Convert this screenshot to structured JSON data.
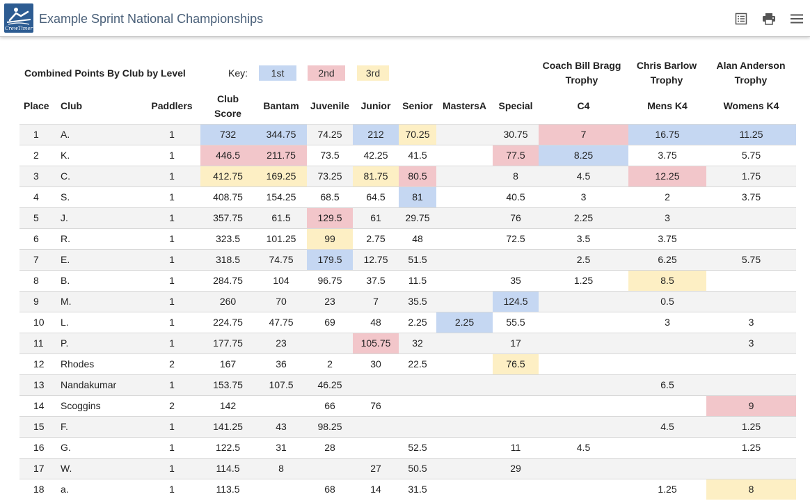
{
  "app": {
    "title": "Example Sprint National Championships",
    "logo_text": "CrewTimer"
  },
  "toolbar": {
    "icons": [
      "list-view-icon",
      "print-icon",
      "menu-icon"
    ]
  },
  "colors": {
    "first": "#c5d7f2",
    "second": "#f2c6ca",
    "third": "#fdefc4"
  },
  "report": {
    "title": "Combined Points By Club by Level",
    "key_label": "Key:",
    "key": {
      "first": "1st",
      "second": "2nd",
      "third": "3rd"
    },
    "trophies": {
      "c4": "Coach Bill Bragg Trophy",
      "mens_k4": "Chris Barlow Trophy",
      "womens_k4": "Alan Anderson Trophy"
    },
    "columns": {
      "place": "Place",
      "club": "Club",
      "paddlers": "Paddlers",
      "club_score": "Club Score",
      "bantam": "Bantam",
      "juvenile": "Juvenile",
      "junior": "Junior",
      "senior": "Senior",
      "masters_a": "MastersA",
      "special": "Special",
      "c4": "C4",
      "mens_k4": "Mens K4",
      "womens_k4": "Womens K4"
    },
    "rows": [
      {
        "place": "1",
        "club": "A.",
        "paddlers": "1",
        "club_score": "732",
        "bantam": "344.75",
        "juvenile": "74.25",
        "junior": "212",
        "senior": "70.25",
        "masters_a": "",
        "special": "30.75",
        "c4": "7",
        "mens_k4": "16.75",
        "womens_k4": "11.25",
        "highlight": {
          "club_score": "1",
          "bantam": "1",
          "junior": "1",
          "senior": "3",
          "c4": "2",
          "mens_k4": "1",
          "womens_k4": "1"
        }
      },
      {
        "place": "2",
        "club": "K.",
        "paddlers": "1",
        "club_score": "446.5",
        "bantam": "211.75",
        "juvenile": "73.5",
        "junior": "42.25",
        "senior": "41.5",
        "masters_a": "",
        "special": "77.5",
        "c4": "8.25",
        "mens_k4": "3.75",
        "womens_k4": "5.75",
        "highlight": {
          "club_score": "2",
          "bantam": "2",
          "special": "2",
          "c4": "1"
        }
      },
      {
        "place": "3",
        "club": "C.",
        "paddlers": "1",
        "club_score": "412.75",
        "bantam": "169.25",
        "juvenile": "73.25",
        "junior": "81.75",
        "senior": "80.5",
        "masters_a": "",
        "special": "8",
        "c4": "4.5",
        "mens_k4": "12.25",
        "womens_k4": "1.75",
        "highlight": {
          "club_score": "3",
          "bantam": "3",
          "junior": "3",
          "senior": "2",
          "mens_k4": "2"
        }
      },
      {
        "place": "4",
        "club": "S.",
        "paddlers": "1",
        "club_score": "408.75",
        "bantam": "154.25",
        "juvenile": "68.5",
        "junior": "64.5",
        "senior": "81",
        "masters_a": "",
        "special": "40.5",
        "c4": "3",
        "mens_k4": "2",
        "womens_k4": "3.75",
        "highlight": {
          "senior": "1"
        }
      },
      {
        "place": "5",
        "club": "J.",
        "paddlers": "1",
        "club_score": "357.75",
        "bantam": "61.5",
        "juvenile": "129.5",
        "junior": "61",
        "senior": "29.75",
        "masters_a": "",
        "special": "76",
        "c4": "2.25",
        "mens_k4": "3",
        "womens_k4": "",
        "highlight": {
          "juvenile": "2"
        }
      },
      {
        "place": "6",
        "club": "R.",
        "paddlers": "1",
        "club_score": "323.5",
        "bantam": "101.25",
        "juvenile": "99",
        "junior": "2.75",
        "senior": "48",
        "masters_a": "",
        "special": "72.5",
        "c4": "3.5",
        "mens_k4": "3.75",
        "womens_k4": "",
        "highlight": {
          "juvenile": "3"
        }
      },
      {
        "place": "7",
        "club": "E.",
        "paddlers": "1",
        "club_score": "318.5",
        "bantam": "74.75",
        "juvenile": "179.5",
        "junior": "12.75",
        "senior": "51.5",
        "masters_a": "",
        "special": "",
        "c4": "2.5",
        "mens_k4": "6.25",
        "womens_k4": "5.75",
        "highlight": {
          "juvenile": "1"
        }
      },
      {
        "place": "8",
        "club": "B.",
        "paddlers": "1",
        "club_score": "284.75",
        "bantam": "104",
        "juvenile": "96.75",
        "junior": "37.5",
        "senior": "11.5",
        "masters_a": "",
        "special": "35",
        "c4": "1.25",
        "mens_k4": "8.5",
        "womens_k4": "",
        "highlight": {
          "mens_k4": "3"
        }
      },
      {
        "place": "9",
        "club": "M.",
        "paddlers": "1",
        "club_score": "260",
        "bantam": "70",
        "juvenile": "23",
        "junior": "7",
        "senior": "35.5",
        "masters_a": "",
        "special": "124.5",
        "c4": "",
        "mens_k4": "0.5",
        "womens_k4": "",
        "highlight": {
          "special": "1"
        }
      },
      {
        "place": "10",
        "club": "L.",
        "paddlers": "1",
        "club_score": "224.75",
        "bantam": "47.75",
        "juvenile": "69",
        "junior": "48",
        "senior": "2.25",
        "masters_a": "2.25",
        "special": "55.5",
        "c4": "",
        "mens_k4": "3",
        "womens_k4": "3",
        "highlight": {
          "masters_a": "1"
        }
      },
      {
        "place": "11",
        "club": "P.",
        "paddlers": "1",
        "club_score": "177.75",
        "bantam": "23",
        "juvenile": "",
        "junior": "105.75",
        "senior": "32",
        "masters_a": "",
        "special": "17",
        "c4": "",
        "mens_k4": "",
        "womens_k4": "3",
        "highlight": {
          "junior": "2"
        }
      },
      {
        "place": "12",
        "club": "Rhodes",
        "paddlers": "2",
        "club_score": "167",
        "bantam": "36",
        "juvenile": "2",
        "junior": "30",
        "senior": "22.5",
        "masters_a": "",
        "special": "76.5",
        "c4": "",
        "mens_k4": "",
        "womens_k4": "",
        "highlight": {
          "special": "3"
        }
      },
      {
        "place": "13",
        "club": "Nandakumar",
        "paddlers": "1",
        "club_score": "153.75",
        "bantam": "107.5",
        "juvenile": "46.25",
        "junior": "",
        "senior": "",
        "masters_a": "",
        "special": "",
        "c4": "",
        "mens_k4": "6.5",
        "womens_k4": "",
        "highlight": {}
      },
      {
        "place": "14",
        "club": "Scoggins",
        "paddlers": "2",
        "club_score": "142",
        "bantam": "",
        "juvenile": "66",
        "junior": "76",
        "senior": "",
        "masters_a": "",
        "special": "",
        "c4": "",
        "mens_k4": "",
        "womens_k4": "9",
        "highlight": {
          "womens_k4": "2"
        }
      },
      {
        "place": "15",
        "club": "F.",
        "paddlers": "1",
        "club_score": "141.25",
        "bantam": "43",
        "juvenile": "98.25",
        "junior": "",
        "senior": "",
        "masters_a": "",
        "special": "",
        "c4": "",
        "mens_k4": "4.5",
        "womens_k4": "1.25",
        "highlight": {}
      },
      {
        "place": "16",
        "club": "G.",
        "paddlers": "1",
        "club_score": "122.5",
        "bantam": "31",
        "juvenile": "28",
        "junior": "",
        "senior": "52.5",
        "masters_a": "",
        "special": "11",
        "c4": "4.5",
        "mens_k4": "",
        "womens_k4": "1.25",
        "highlight": {}
      },
      {
        "place": "17",
        "club": "W.",
        "paddlers": "1",
        "club_score": "114.5",
        "bantam": "8",
        "juvenile": "",
        "junior": "27",
        "senior": "50.5",
        "masters_a": "",
        "special": "29",
        "c4": "",
        "mens_k4": "",
        "womens_k4": "",
        "highlight": {}
      },
      {
        "place": "18",
        "club": "a.",
        "paddlers": "1",
        "club_score": "113.5",
        "bantam": "",
        "juvenile": "68",
        "junior": "14",
        "senior": "31.5",
        "masters_a": "",
        "special": "",
        "c4": "",
        "mens_k4": "1.25",
        "womens_k4": "8",
        "highlight": {
          "womens_k4": "3"
        }
      }
    ]
  }
}
